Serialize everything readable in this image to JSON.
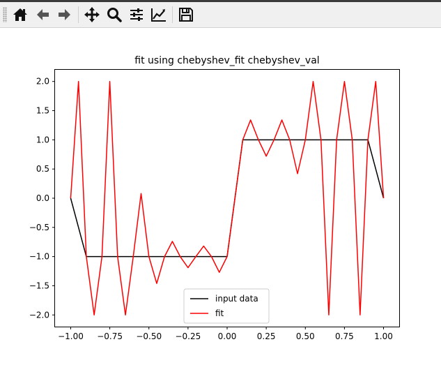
{
  "toolbar": {
    "buttons": [
      {
        "icon": "home-icon"
      },
      {
        "icon": "back-arrow-icon"
      },
      {
        "icon": "forward-arrow-icon"
      },
      {
        "icon": "pan-move-icon"
      },
      {
        "icon": "zoom-magnifier-icon"
      },
      {
        "icon": "configure-subplots-icon"
      },
      {
        "icon": "edit-axis-icon"
      },
      {
        "icon": "save-floppy-icon"
      }
    ]
  },
  "chart_data": {
    "type": "line",
    "title": "fit using chebyshev_fit chebyshev_val",
    "xlabel": "",
    "ylabel": "",
    "xlim": [
      -1.1,
      1.1
    ],
    "ylim": [
      -2.2,
      2.2
    ],
    "xticks": [
      "−1.00",
      "−0.75",
      "−0.50",
      "−0.25",
      "0.00",
      "0.25",
      "0.50",
      "0.75",
      "1.00"
    ],
    "xtick_values": [
      -1.0,
      -0.75,
      -0.5,
      -0.25,
      0.0,
      0.25,
      0.5,
      0.75,
      1.0
    ],
    "yticks": [
      "−2.0",
      "−1.5",
      "−1.0",
      "−0.5",
      "0.0",
      "0.5",
      "1.0",
      "1.5",
      "2.0"
    ],
    "ytick_values": [
      -2.0,
      -1.5,
      -1.0,
      -0.5,
      0.0,
      0.5,
      1.0,
      1.5,
      2.0
    ],
    "grid": false,
    "legend": "lower-center",
    "series": [
      {
        "name": "input data",
        "color": "#000000",
        "x": [
          -1.0,
          -0.9,
          0.0,
          0.1,
          0.9,
          1.0
        ],
        "y": [
          0.0,
          -1.0,
          -1.0,
          1.0,
          1.0,
          0.0
        ]
      },
      {
        "name": "fit",
        "color": "#ff0000",
        "x": [
          -1.0,
          -0.95,
          -0.9,
          -0.85,
          -0.8,
          -0.75,
          -0.7,
          -0.65,
          -0.6,
          -0.55,
          -0.5,
          -0.45,
          -0.4,
          -0.35,
          -0.3,
          -0.25,
          -0.2,
          -0.15,
          -0.1,
          -0.05,
          0.0,
          0.05,
          0.1,
          0.15,
          0.2,
          0.25,
          0.3,
          0.35,
          0.4,
          0.45,
          0.5,
          0.55,
          0.6,
          0.65,
          0.7,
          0.75,
          0.8,
          0.85,
          0.9,
          0.95,
          1.0
        ],
        "y": [
          0.0,
          2.0,
          -1.0,
          -2.0,
          -1.0,
          2.0,
          -1.0,
          -2.0,
          -1.0,
          0.08,
          -1.0,
          -1.46,
          -1.0,
          -0.74,
          -1.0,
          -1.19,
          -1.0,
          -0.82,
          -1.0,
          -1.27,
          -1.0,
          0.0,
          1.0,
          1.34,
          1.0,
          0.72,
          1.0,
          1.34,
          1.0,
          0.42,
          1.0,
          2.0,
          1.0,
          -2.0,
          1.0,
          2.0,
          1.0,
          -2.0,
          1.0,
          2.0,
          0.0
        ]
      }
    ]
  }
}
